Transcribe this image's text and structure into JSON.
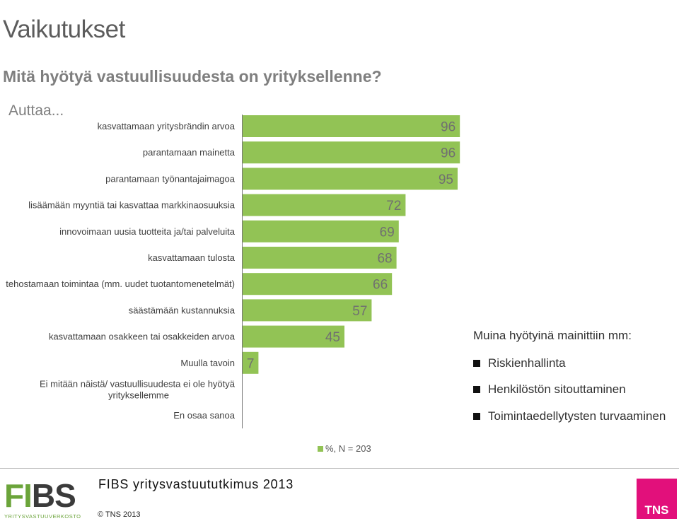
{
  "title": "Vaikutukset",
  "subtitle": "Mitä hyötyä vastuullisuudesta on yrityksellenne?",
  "lead": "Auttaa...",
  "chart_data": {
    "type": "bar",
    "orientation": "horizontal",
    "categories": [
      "kasvattamaan yritysbrändin arvoa",
      "parantamaan mainetta",
      "parantamaan työnantajaimagoa",
      "lisäämään myyntiä tai kasvattaa markkinaosuuksia",
      "innovoimaan uusia tuotteita ja/tai palveluita",
      "kasvattamaan tulosta",
      "tehostamaan toimintaa (mm. uudet tuotantomenetelmät)",
      "säästämään kustannuksia",
      "kasvattamaan osakkeen tai osakkeiden arvoa",
      "Muulla tavoin",
      "Ei mitään näistä/ vastuullisuudesta ei ole hyötyä yrityksellemme",
      "En osaa sanoa"
    ],
    "values": [
      96,
      96,
      95,
      72,
      69,
      68,
      66,
      57,
      45,
      7,
      0,
      0
    ],
    "value_labels": [
      "96",
      "96",
      "95",
      "72",
      "69",
      "68",
      "66",
      "57",
      "45",
      "7",
      "",
      ""
    ],
    "xlim": [
      0,
      100
    ],
    "grid": false,
    "legend": "%, N = 203",
    "legend_position": "bottom",
    "bar_color": "#92c355"
  },
  "other_benefits": {
    "title": "Muina hyötyinä mainittiin mm:",
    "items": [
      "Riskienhallinta",
      "Henkilöstön sitouttaminen",
      "Toimintaedellytysten turvaaminen"
    ]
  },
  "footer": {
    "logo_main": "FIBS",
    "logo_sub": "YRITYSVASTUUVERKOSTO",
    "survey": "FIBS yritysvastuututkimus 2013",
    "copyright": "© TNS 2013",
    "tns_logo": "TNS"
  }
}
